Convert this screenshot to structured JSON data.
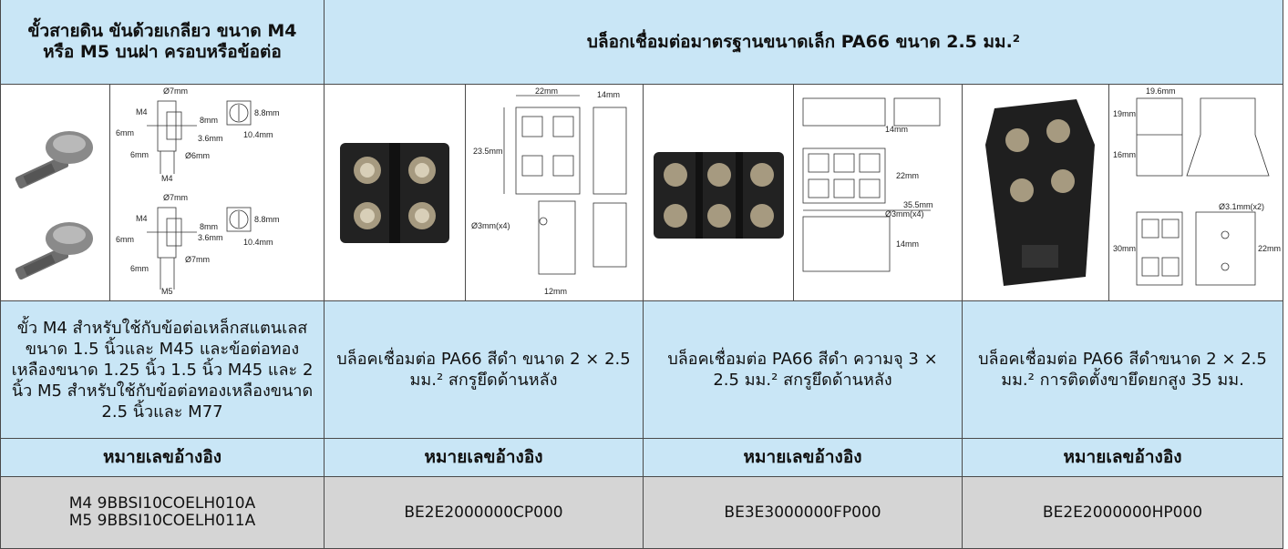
{
  "table": {
    "header": [
      "ขั้วสายดิน ขันด้วยเกลียว ขนาด M4 หรือ M5 บนฝา ครอบหรือข้อต่อ",
      "บล็อกเชื่อมต่อมาตรฐานขนาดเล็ก PA66 ขนาด 2.5 มม.²"
    ],
    "drawings": [
      {
        "labels": [
          "Ø7mm",
          "M4",
          "8mm",
          "6mm",
          "3.6mm",
          "8.8mm",
          "10.4mm",
          "6mm",
          "Ø6mm",
          "M4",
          "Ø7mm",
          "M4",
          "8mm",
          "6mm",
          "3.6mm",
          "8.8mm",
          "10.4mm",
          "6mm",
          "Ø7mm",
          "M5"
        ]
      },
      {
        "labels": [
          "22mm",
          "14mm",
          "23.5mm",
          "Ø3mm(x4)",
          "12mm"
        ]
      },
      {
        "labels": [
          "14mm",
          "22mm",
          "35.5mm",
          "Ø3mm(x4)",
          "14mm"
        ]
      },
      {
        "labels": [
          "19.6mm",
          "19mm",
          "16mm",
          "Ø3.1mm(x2)",
          "30mm",
          "22mm"
        ]
      }
    ],
    "descriptions": [
      "ขั้ว M4 สำหรับใช้กับข้อต่อเหล็กสแตนเลสขนาด 1.5 นิ้วและ M45 และข้อต่อทองเหลืองขนาด 1.25 นิ้ว 1.5 นิ้ว M45 และ 2 นิ้ว M5 สำหรับใช้กับข้อต่อทองเหลืองขนาด 2.5 นิ้วและ M77",
      "บล็อคเชื่อมต่อ PA66 สีดำ ขนาด 2 × 2.5 มม.² สกรูยึดด้านหลัง",
      "บล็อคเชื่อมต่อ PA66 สีดำ ความจุ 3 × 2.5 มม.² สกรูยึดด้านหลัง",
      "บล็อคเชื่อมต่อ PA66 สีดำขนาด 2 × 2.5 มม.² การติดตั้งขายึดยกสูง 35 มม."
    ],
    "ref_headers": [
      "หมายเลขอ้างอิง",
      "หมายเลขอ้างอิง",
      "หมายเลขอ้างอิง",
      "หมายเลขอ้างอิง"
    ],
    "refs": [
      [
        "M4 9BBSI10COELH010A",
        "M5 9BBSI10COELH011A"
      ],
      [
        "BE2E2000000CP000"
      ],
      [
        "BE3E3000000FP000"
      ],
      [
        "BE2E2000000HP000"
      ]
    ]
  }
}
